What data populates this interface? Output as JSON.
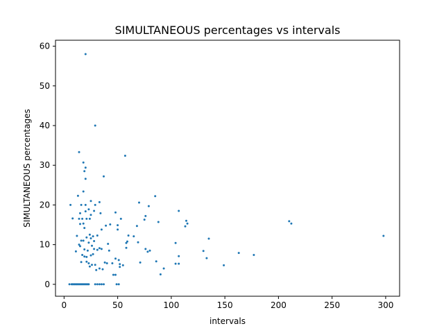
{
  "chart_data": {
    "type": "scatter",
    "title": "SIMULTANEOUS percentages vs intervals",
    "xlabel": "intervals",
    "ylabel": "SIMULTANEOUS percentages",
    "xlim": [
      -8,
      313
    ],
    "ylim": [
      -3,
      61.5
    ],
    "xticks": [
      0,
      50,
      100,
      150,
      200,
      250,
      300
    ],
    "yticks": [
      0,
      10,
      20,
      30,
      40,
      50,
      60
    ],
    "grid": false,
    "marker_color": "#1f77b4",
    "points": [
      [
        20,
        58
      ],
      [
        29,
        40
      ],
      [
        14,
        33.3
      ],
      [
        57,
        32.4
      ],
      [
        18,
        30.7
      ],
      [
        20,
        29.4
      ],
      [
        19,
        28.5
      ],
      [
        37,
        27.2
      ],
      [
        20,
        26.6
      ],
      [
        18,
        23.4
      ],
      [
        13,
        22.3
      ],
      [
        85,
        22.2
      ],
      [
        25,
        21
      ],
      [
        33,
        20.7
      ],
      [
        70,
        20.6
      ],
      [
        6,
        20
      ],
      [
        16,
        20
      ],
      [
        20,
        20
      ],
      [
        29,
        20
      ],
      [
        79,
        19.7
      ],
      [
        23,
        18.9
      ],
      [
        20,
        18.4
      ],
      [
        28,
        18.5
      ],
      [
        107,
        18.5
      ],
      [
        48,
        18.1
      ],
      [
        15,
        17.9
      ],
      [
        34,
        17.9
      ],
      [
        25,
        17.5
      ],
      [
        76,
        17.2
      ],
      [
        8,
        16.6
      ],
      [
        14,
        16.5
      ],
      [
        17,
        16.5
      ],
      [
        21,
        16.5
      ],
      [
        24,
        16.5
      ],
      [
        53,
        16.5
      ],
      [
        75,
        16.3
      ],
      [
        114,
        16
      ],
      [
        210,
        15.9
      ],
      [
        212,
        15.3
      ],
      [
        88,
        15.7
      ],
      [
        115,
        15.3
      ],
      [
        15,
        15.2
      ],
      [
        18,
        15.3
      ],
      [
        43,
        15.1
      ],
      [
        39,
        14.8
      ],
      [
        50,
        14.9
      ],
      [
        68,
        14.7
      ],
      [
        113,
        14.6
      ],
      [
        19,
        14.2
      ],
      [
        35,
        13.8
      ],
      [
        50,
        13.8
      ],
      [
        24,
        12.5
      ],
      [
        12,
        12.2
      ],
      [
        27,
        12.1
      ],
      [
        31,
        12.3
      ],
      [
        60,
        12.3
      ],
      [
        65,
        12.1
      ],
      [
        298,
        12.2
      ],
      [
        21,
        11.8
      ],
      [
        25,
        11.6
      ],
      [
        135,
        11.5
      ],
      [
        16,
        11
      ],
      [
        18,
        11
      ],
      [
        28,
        10.9
      ],
      [
        59,
        10.8
      ],
      [
        23,
        10.5
      ],
      [
        58,
        10.4
      ],
      [
        69,
        10.6
      ],
      [
        104,
        10.4
      ],
      [
        41,
        10.2
      ],
      [
        14,
        10
      ],
      [
        15,
        9.6
      ],
      [
        26,
        9.7
      ],
      [
        33,
        9.1
      ],
      [
        58,
        9.2
      ],
      [
        28,
        8.9
      ],
      [
        19,
        8.8
      ],
      [
        31,
        8.7
      ],
      [
        42,
        8.5
      ],
      [
        80,
        8.5
      ],
      [
        22,
        8.5
      ],
      [
        35,
        8.9
      ],
      [
        76,
        8.9
      ],
      [
        11,
        8.3
      ],
      [
        130,
        8.4
      ],
      [
        78,
        8.2
      ],
      [
        163,
        7.9
      ],
      [
        27,
        7.6
      ],
      [
        17,
        7.4
      ],
      [
        177,
        7.4
      ],
      [
        25,
        7.3
      ],
      [
        107,
        7.1
      ],
      [
        19,
        7
      ],
      [
        21,
        6.9
      ],
      [
        133,
        6.6
      ],
      [
        48,
        6.5
      ],
      [
        51,
        6.1
      ],
      [
        86,
        5.8
      ],
      [
        16,
        5.6
      ],
      [
        21,
        5.7
      ],
      [
        38,
        5.5
      ],
      [
        71,
        5.5
      ],
      [
        23,
        5.3
      ],
      [
        40,
        5.3
      ],
      [
        45,
        5.3
      ],
      [
        104,
        5.2
      ],
      [
        107,
        5.2
      ],
      [
        52,
        5.1
      ],
      [
        26,
        4.9
      ],
      [
        29,
        4.9
      ],
      [
        55,
        4.8
      ],
      [
        149,
        4.8
      ],
      [
        24,
        4.5
      ],
      [
        52,
        4.4
      ],
      [
        33,
        4
      ],
      [
        93,
        4
      ],
      [
        30,
        3.6
      ],
      [
        36,
        3.8
      ],
      [
        46,
        2.4
      ],
      [
        48,
        2.4
      ],
      [
        90,
        2.5
      ],
      [
        5,
        0
      ],
      [
        7,
        0
      ],
      [
        8,
        0
      ],
      [
        9,
        0
      ],
      [
        10,
        0
      ],
      [
        11,
        0
      ],
      [
        12,
        0
      ],
      [
        13,
        0
      ],
      [
        14,
        0
      ],
      [
        15,
        0
      ],
      [
        16,
        0
      ],
      [
        17,
        0
      ],
      [
        18,
        0
      ],
      [
        19,
        0
      ],
      [
        20,
        0
      ],
      [
        21,
        0
      ],
      [
        22,
        0
      ],
      [
        23,
        0
      ],
      [
        29,
        0
      ],
      [
        31,
        0
      ],
      [
        33,
        0
      ],
      [
        35,
        0
      ],
      [
        37,
        0
      ],
      [
        49,
        0
      ],
      [
        51,
        0
      ]
    ]
  }
}
